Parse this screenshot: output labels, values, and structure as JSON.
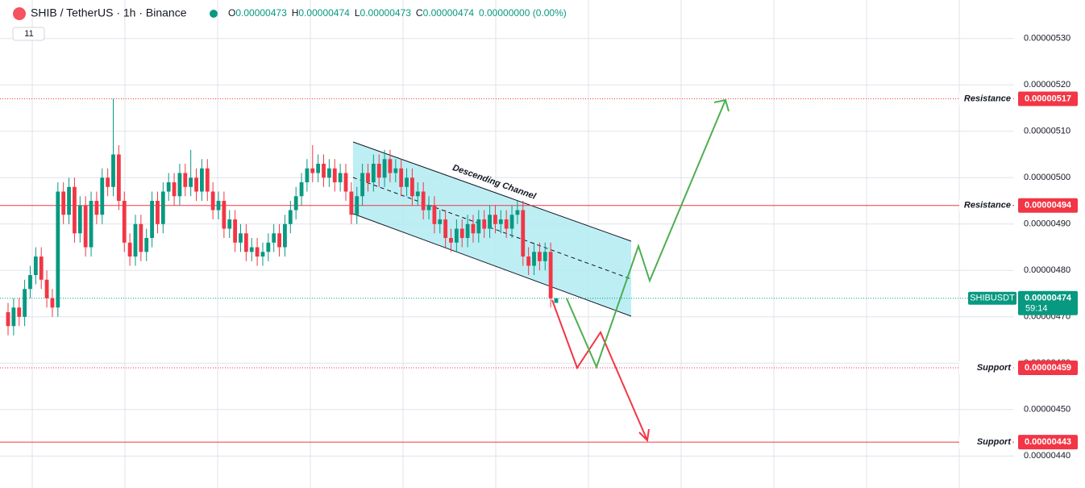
{
  "chart_data": {
    "type": "candlestick",
    "title": "SHIB / TetherUS · 1h · Binance",
    "header": {
      "items": [
        {
          "key": "O",
          "value": 4.73e-06
        },
        {
          "key": "H",
          "value": 4.74e-06
        },
        {
          "key": "L",
          "value": 4.73e-06
        },
        {
          "key": "C",
          "value": 4.74e-06
        }
      ],
      "change": "0.00000000 (0.00%)",
      "indicators": "11"
    },
    "up_color": "#089981",
    "down_color": "#f23645",
    "open": [
      4.71e-06,
      4.68e-06,
      4.72e-06,
      4.7e-06,
      4.76e-06,
      4.79e-06,
      4.83e-06,
      4.78e-06,
      4.74e-06,
      4.72e-06,
      4.97e-06,
      4.92e-06,
      4.98e-06,
      4.88e-06,
      4.94e-06,
      4.85e-06,
      4.95e-06,
      4.92e-06,
      5e-06,
      4.98e-06,
      5.05e-06,
      4.95e-06,
      4.86e-06,
      4.83e-06,
      4.9e-06,
      4.84e-06,
      4.87e-06,
      4.95e-06,
      4.9e-06,
      4.97e-06,
      4.99e-06,
      4.96e-06,
      5.01e-06,
      4.98e-06,
      5e-06,
      4.97e-06,
      5.02e-06,
      4.97e-06,
      4.93e-06,
      4.95e-06,
      4.89e-06,
      4.91e-06,
      4.86e-06,
      4.88e-06,
      4.84e-06,
      4.85e-06,
      4.83e-06,
      4.84e-06,
      4.86e-06,
      4.88e-06,
      4.85e-06,
      4.9e-06,
      4.93e-06,
      4.96e-06,
      4.99e-06,
      5.02e-06,
      5.01e-06,
      5.03e-06,
      5e-06,
      5.02e-06,
      4.99e-06,
      5.01e-06,
      4.97e-06,
      4.92e-06,
      4.96e-06,
      5.01e-06,
      4.99e-06,
      5.03e-06,
      5e-06,
      5.04e-06,
      5.01e-06,
      5.02e-06,
      4.98e-06,
      5e-06,
      4.96e-06,
      4.97e-06,
      4.93e-06,
      4.94e-06,
      4.9e-06,
      4.91e-06,
      4.87e-06,
      4.86e-06,
      4.89e-06,
      4.87e-06,
      4.9e-06,
      4.88e-06,
      4.91e-06,
      4.89e-06,
      4.92e-06,
      4.9e-06,
      4.91e-06,
      4.89e-06,
      4.92e-06,
      4.93e-06,
      4.83e-06,
      4.81e-06,
      4.84e-06,
      4.82e-06,
      4.84e-06,
      4.73e-06
    ],
    "high": [
      4.73e-06,
      4.74e-06,
      4.74e-06,
      4.78e-06,
      4.81e-06,
      4.85e-06,
      4.85e-06,
      4.8e-06,
      4.76e-06,
      4.99e-06,
      4.99e-06,
      5e-06,
      5e-06,
      4.96e-06,
      4.96e-06,
      4.97e-06,
      4.97e-06,
      5.02e-06,
      5.02e-06,
      5.17e-06,
      5.07e-06,
      4.97e-06,
      4.88e-06,
      4.92e-06,
      4.92e-06,
      4.89e-06,
      4.97e-06,
      4.97e-06,
      4.99e-06,
      5.01e-06,
      5.01e-06,
      5.03e-06,
      5.03e-06,
      5.06e-06,
      5.02e-06,
      5.04e-06,
      5.04e-06,
      4.99e-06,
      4.97e-06,
      4.97e-06,
      4.93e-06,
      4.93e-06,
      4.9e-06,
      4.9e-06,
      4.87e-06,
      4.87e-06,
      4.86e-06,
      4.88e-06,
      4.9e-06,
      4.9e-06,
      4.92e-06,
      4.95e-06,
      4.98e-06,
      5.01e-06,
      5.04e-06,
      5.07e-06,
      5.05e-06,
      5.05e-06,
      5.04e-06,
      5.04e-06,
      5.03e-06,
      5.03e-06,
      4.99e-06,
      4.98e-06,
      5.03e-06,
      5.03e-06,
      5.05e-06,
      5.05e-06,
      5.06e-06,
      5.06e-06,
      5.04e-06,
      5.04e-06,
      5.02e-06,
      5.02e-06,
      4.99e-06,
      4.99e-06,
      4.96e-06,
      4.96e-06,
      4.93e-06,
      4.93e-06,
      4.89e-06,
      4.91e-06,
      4.91e-06,
      4.92e-06,
      4.92e-06,
      4.93e-06,
      4.93e-06,
      4.94e-06,
      4.94e-06,
      4.93e-06,
      4.93e-06,
      4.94e-06,
      4.95e-06,
      4.95e-06,
      4.85e-06,
      4.86e-06,
      4.86e-06,
      4.86e-06,
      4.86e-06,
      4.74e-06
    ],
    "low": [
      4.66e-06,
      4.66e-06,
      4.68e-06,
      4.68e-06,
      4.74e-06,
      4.77e-06,
      4.76e-06,
      4.72e-06,
      4.7e-06,
      4.7e-06,
      4.9e-06,
      4.9e-06,
      4.86e-06,
      4.86e-06,
      4.83e-06,
      4.83e-06,
      4.9e-06,
      4.9e-06,
      4.96e-06,
      4.96e-06,
      4.93e-06,
      4.84e-06,
      4.81e-06,
      4.81e-06,
      4.82e-06,
      4.82e-06,
      4.85e-06,
      4.88e-06,
      4.88e-06,
      4.95e-06,
      4.94e-06,
      4.94e-06,
      4.96e-06,
      4.96e-06,
      4.95e-06,
      4.95e-06,
      4.95e-06,
      4.91e-06,
      4.91e-06,
      4.87e-06,
      4.87e-06,
      4.84e-06,
      4.84e-06,
      4.82e-06,
      4.82e-06,
      4.81e-06,
      4.81e-06,
      4.82e-06,
      4.84e-06,
      4.83e-06,
      4.83e-06,
      4.88e-06,
      4.91e-06,
      4.94e-06,
      4.97e-06,
      4.99e-06,
      4.99e-06,
      4.98e-06,
      4.98e-06,
      4.97e-06,
      4.97e-06,
      4.95e-06,
      4.9e-06,
      4.9e-06,
      4.94e-06,
      4.97e-06,
      4.97e-06,
      4.98e-06,
      4.98e-06,
      4.99e-06,
      4.99e-06,
      4.96e-06,
      4.96e-06,
      4.94e-06,
      4.94e-06,
      4.91e-06,
      4.91e-06,
      4.88e-06,
      4.88e-06,
      4.85e-06,
      4.84e-06,
      4.84e-06,
      4.85e-06,
      4.85e-06,
      4.86e-06,
      4.86e-06,
      4.87e-06,
      4.87e-06,
      4.88e-06,
      4.88e-06,
      4.87e-06,
      4.87e-06,
      4.9e-06,
      4.81e-06,
      4.79e-06,
      4.79e-06,
      4.8e-06,
      4.8e-06,
      4.72e-06,
      4.73e-06
    ],
    "close": [
      4.68e-06,
      4.72e-06,
      4.7e-06,
      4.76e-06,
      4.79e-06,
      4.83e-06,
      4.78e-06,
      4.74e-06,
      4.72e-06,
      4.97e-06,
      4.92e-06,
      4.98e-06,
      4.88e-06,
      4.94e-06,
      4.85e-06,
      4.95e-06,
      4.92e-06,
      5e-06,
      4.98e-06,
      5.05e-06,
      4.95e-06,
      4.86e-06,
      4.83e-06,
      4.9e-06,
      4.84e-06,
      4.87e-06,
      4.95e-06,
      4.9e-06,
      4.97e-06,
      4.99e-06,
      4.96e-06,
      5.01e-06,
      4.98e-06,
      5e-06,
      4.97e-06,
      5.02e-06,
      4.97e-06,
      4.93e-06,
      4.95e-06,
      4.89e-06,
      4.91e-06,
      4.86e-06,
      4.88e-06,
      4.84e-06,
      4.85e-06,
      4.83e-06,
      4.84e-06,
      4.86e-06,
      4.88e-06,
      4.85e-06,
      4.9e-06,
      4.93e-06,
      4.96e-06,
      4.99e-06,
      5.02e-06,
      5.01e-06,
      5.03e-06,
      5e-06,
      5.02e-06,
      4.99e-06,
      5.01e-06,
      4.97e-06,
      4.92e-06,
      4.96e-06,
      5.01e-06,
      4.99e-06,
      5.03e-06,
      5e-06,
      5.04e-06,
      5.01e-06,
      5.02e-06,
      4.98e-06,
      5e-06,
      4.96e-06,
      4.97e-06,
      4.93e-06,
      4.94e-06,
      4.9e-06,
      4.91e-06,
      4.87e-06,
      4.86e-06,
      4.89e-06,
      4.87e-06,
      4.9e-06,
      4.88e-06,
      4.91e-06,
      4.89e-06,
      4.92e-06,
      4.9e-06,
      4.91e-06,
      4.89e-06,
      4.92e-06,
      4.93e-06,
      4.83e-06,
      4.81e-06,
      4.84e-06,
      4.82e-06,
      4.84e-06,
      4.74e-06,
      4.74e-06
    ],
    "ylim": [
      4.331e-06,
      5.383e-06
    ],
    "yticks": [
      {
        "value": 5.3e-06,
        "label": "0.00000530"
      },
      {
        "value": 5.2e-06,
        "label": "0.00000520"
      },
      {
        "value": 5.1e-06,
        "label": "0.00000510"
      },
      {
        "value": 5e-06,
        "label": "0.00000500"
      },
      {
        "value": 4.9e-06,
        "label": "0.00000490"
      },
      {
        "value": 4.8e-06,
        "label": "0.00000480"
      },
      {
        "value": 4.7e-06,
        "label": "0.00000470"
      },
      {
        "value": 4.6e-06,
        "label": "0.00000460"
      },
      {
        "value": 4.5e-06,
        "label": "0.00000450"
      },
      {
        "value": 4.4e-06,
        "label": "0.00000440"
      }
    ],
    "grid": true,
    "levels": [
      {
        "label": "Resistance",
        "value": 5.17e-06,
        "style": "dotted"
      },
      {
        "label": "Resistance",
        "value": 4.94e-06,
        "style": "solid"
      },
      {
        "label": "Support",
        "value": 4.59e-06,
        "style": "dotted"
      },
      {
        "label": "Support",
        "value": 4.43e-06,
        "style": "solid"
      }
    ],
    "level_color": "#f23645",
    "last_price": {
      "symbol": "SHIBUSDT",
      "value": 4.74e-06,
      "countdown": "59:14"
    },
    "annotation": "Descending Channel"
  }
}
